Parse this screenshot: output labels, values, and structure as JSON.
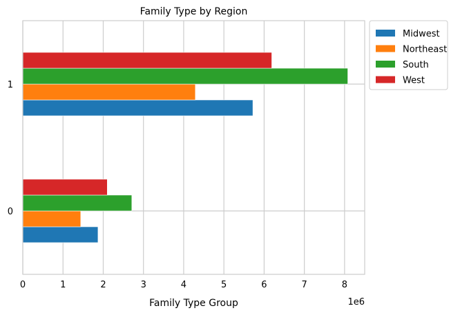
{
  "chart_data": {
    "type": "bar",
    "orientation": "horizontal",
    "title": "Family Type by Region",
    "xlabel": "Family Type Group",
    "ylabel": "",
    "x_offset_label": "1e6",
    "xlim": [
      0,
      8.5
    ],
    "x_ticks": [
      0,
      1,
      2,
      3,
      4,
      5,
      6,
      7,
      8
    ],
    "categories": [
      "0",
      "1"
    ],
    "grid": true,
    "legend_position": "upper-right-outside",
    "series": [
      {
        "name": "Midwest",
        "color": "#1f77b4",
        "values": [
          1.87,
          5.72
        ]
      },
      {
        "name": "Northeast",
        "color": "#ff7f0e",
        "values": [
          1.44,
          4.29
        ]
      },
      {
        "name": "South",
        "color": "#2ca02c",
        "values": [
          2.71,
          8.08
        ]
      },
      {
        "name": "West",
        "color": "#d62728",
        "values": [
          2.1,
          6.19
        ]
      }
    ]
  }
}
